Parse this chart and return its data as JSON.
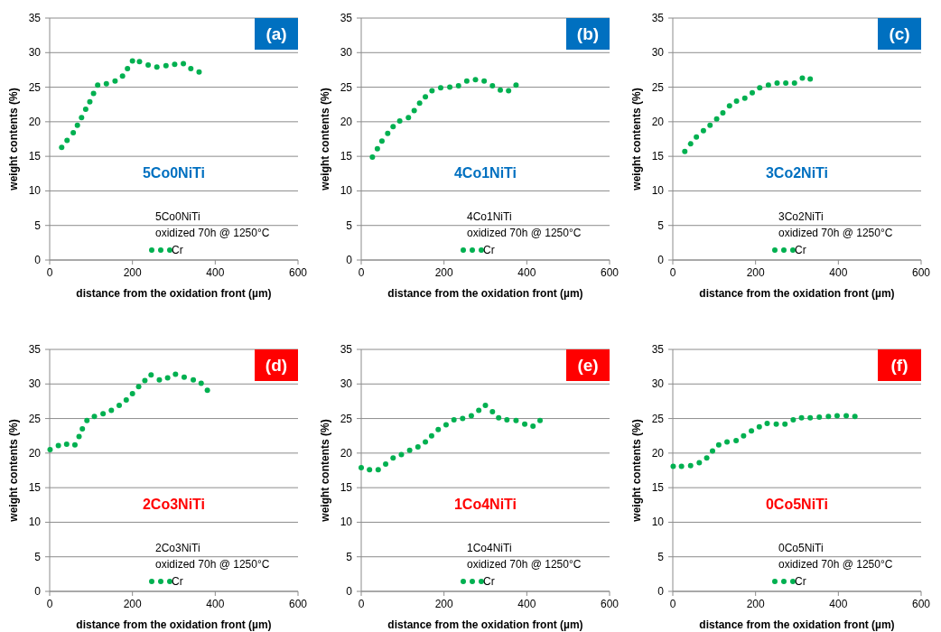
{
  "chart_data": [
    {
      "type": "scatter",
      "xlabel": "distance from the oxidation front (µm)",
      "ylabel": "weight contents (%)",
      "xlim": [
        0,
        600
      ],
      "xticks": [
        0,
        200,
        400,
        600
      ],
      "ylim": [
        0,
        35
      ],
      "yticks": [
        0,
        5,
        10,
        15,
        20,
        25,
        30,
        35
      ],
      "grid": "y",
      "legend": "bottom",
      "marker": "circle",
      "annotations": [
        "(a)",
        "5Co0NiTi",
        "5Co0NiTi",
        "oxidized 70h @ 1250°C"
      ],
      "series": [
        {
          "name": "Cr",
          "color": "#00b050",
          "x": [
            29,
            42,
            57,
            67,
            77,
            87,
            97,
            106,
            116,
            137,
            158,
            176,
            188,
            200,
            217,
            238,
            259,
            281,
            302,
            323,
            341,
            361
          ],
          "values": [
            16.3,
            17.3,
            18.4,
            19.5,
            20.6,
            21.8,
            22.9,
            24.1,
            25.3,
            25.5,
            25.9,
            26.6,
            27.7,
            28.8,
            28.7,
            28.2,
            27.9,
            28.1,
            28.3,
            28.4,
            27.7,
            27.2
          ]
        }
      ]
    },
    {
      "type": "scatter",
      "xlabel": "distance from the oxidation front (µm)",
      "ylabel": "weight contents (%)",
      "xlim": [
        0,
        600
      ],
      "xticks": [
        0,
        200,
        400,
        600
      ],
      "ylim": [
        0,
        35
      ],
      "yticks": [
        0,
        5,
        10,
        15,
        20,
        25,
        30,
        35
      ],
      "grid": "y",
      "legend": "bottom",
      "marker": "circle",
      "annotations": [
        "(b)",
        "4Co1NiTi",
        "4Co1NiTi",
        "oxidized 70h @ 1250°C"
      ],
      "series": [
        {
          "name": "Cr",
          "color": "#00b050",
          "x": [
            27,
            39,
            50,
            64,
            77,
            93,
            114,
            128,
            141,
            155,
            171,
            192,
            214,
            235,
            255,
            276,
            297,
            317,
            336,
            356,
            374
          ],
          "values": [
            14.9,
            16.1,
            17.2,
            18.3,
            19.3,
            20.1,
            20.6,
            21.6,
            22.7,
            23.6,
            24.5,
            24.9,
            25.0,
            25.2,
            25.9,
            26.1,
            25.9,
            25.2,
            24.6,
            24.5,
            25.3
          ]
        }
      ]
    },
    {
      "type": "scatter",
      "xlabel": "distance from the oxidation front (µm)",
      "ylabel": "weight contents (%)",
      "xlim": [
        0,
        600
      ],
      "xticks": [
        0,
        200,
        400,
        600
      ],
      "ylim": [
        0,
        35
      ],
      "yticks": [
        0,
        5,
        10,
        15,
        20,
        25,
        30,
        35
      ],
      "grid": "y",
      "legend": "bottom",
      "marker": "circle",
      "annotations": [
        "(c)",
        "3Co2NiTi",
        "3Co2NiTi",
        "oxidized 70h @ 1250°C"
      ],
      "series": [
        {
          "name": "Cr",
          "color": "#00b050",
          "x": [
            29,
            43,
            57,
            74,
            90,
            106,
            121,
            137,
            154,
            174,
            192,
            210,
            231,
            252,
            273,
            294,
            313,
            332
          ],
          "values": [
            15.7,
            16.8,
            17.8,
            18.7,
            19.5,
            20.4,
            21.3,
            22.3,
            23.0,
            23.4,
            24.2,
            24.9,
            25.3,
            25.6,
            25.6,
            25.6,
            26.3,
            26.2
          ]
        }
      ]
    },
    {
      "type": "scatter",
      "xlabel": "distance from the oxidation front (µm)",
      "ylabel": "weight contents (%)",
      "xlim": [
        0,
        600
      ],
      "xticks": [
        0,
        200,
        400,
        600
      ],
      "ylim": [
        0,
        35
      ],
      "yticks": [
        0,
        5,
        10,
        15,
        20,
        25,
        30,
        35
      ],
      "grid": "y",
      "legend": "bottom",
      "marker": "circle",
      "annotations": [
        "(d)",
        "2Co3NiTi",
        "2Co3NiTi",
        "oxidized 70h @ 1250°C"
      ],
      "series": [
        {
          "name": "Cr",
          "color": "#00b050",
          "x": [
            1,
            21,
            41,
            61,
            71,
            79,
            90,
            108,
            129,
            149,
            168,
            185,
            200,
            215,
            230,
            245,
            265,
            285,
            304,
            325,
            347,
            366,
            381
          ],
          "values": [
            20.5,
            21.1,
            21.3,
            21.2,
            22.4,
            23.5,
            24.7,
            25.3,
            25.7,
            26.2,
            26.9,
            27.7,
            28.6,
            29.6,
            30.5,
            31.3,
            30.6,
            30.9,
            31.4,
            31.0,
            30.6,
            30.1,
            29.1
          ]
        }
      ]
    },
    {
      "type": "scatter",
      "xlabel": "distance from the oxidation front (µm)",
      "ylabel": "weight contents (%)",
      "xlim": [
        0,
        600
      ],
      "xticks": [
        0,
        200,
        400,
        600
      ],
      "ylim": [
        0,
        35
      ],
      "yticks": [
        0,
        5,
        10,
        15,
        20,
        25,
        30,
        35
      ],
      "grid": "y",
      "legend": "bottom",
      "marker": "circle",
      "annotations": [
        "(e)",
        "1Co4NiTi",
        "1Co4NiTi",
        "oxidized 70h @ 1250°C"
      ],
      "series": [
        {
          "name": "Cr",
          "color": "#00b050",
          "x": [
            0,
            20,
            41,
            59,
            77,
            97,
            117,
            137,
            155,
            170,
            186,
            205,
            224,
            245,
            266,
            284,
            300,
            317,
            332,
            352,
            374,
            395,
            415,
            432
          ],
          "values": [
            17.9,
            17.6,
            17.6,
            18.4,
            19.3,
            19.8,
            20.4,
            20.9,
            21.6,
            22.5,
            23.4,
            24.1,
            24.8,
            25.0,
            25.4,
            26.2,
            26.9,
            26.0,
            25.1,
            24.8,
            24.7,
            24.2,
            23.9,
            24.7
          ]
        }
      ]
    },
    {
      "type": "scatter",
      "xlabel": "distance from the oxidation front (µm)",
      "ylabel": "weight contents (%)",
      "xlim": [
        0,
        600
      ],
      "xticks": [
        0,
        200,
        400,
        600
      ],
      "ylim": [
        0,
        35
      ],
      "yticks": [
        0,
        5,
        10,
        15,
        20,
        25,
        30,
        35
      ],
      "grid": "y",
      "legend": "bottom",
      "marker": "circle",
      "annotations": [
        "(f)",
        "0Co5NiTi",
        "0Co5NiTi",
        "oxidized 70h @ 1250°C"
      ],
      "series": [
        {
          "name": "Cr",
          "color": "#00b050",
          "x": [
            1,
            21,
            43,
            64,
            82,
            96,
            111,
            131,
            153,
            171,
            190,
            209,
            228,
            250,
            271,
            291,
            311,
            332,
            354,
            376,
            397,
            419,
            440
          ],
          "values": [
            18.1,
            18.1,
            18.2,
            18.6,
            19.3,
            20.3,
            21.2,
            21.6,
            21.8,
            22.5,
            23.2,
            23.8,
            24.3,
            24.2,
            24.2,
            24.8,
            25.1,
            25.1,
            25.2,
            25.3,
            25.4,
            25.4,
            25.3
          ]
        }
      ]
    }
  ]
}
